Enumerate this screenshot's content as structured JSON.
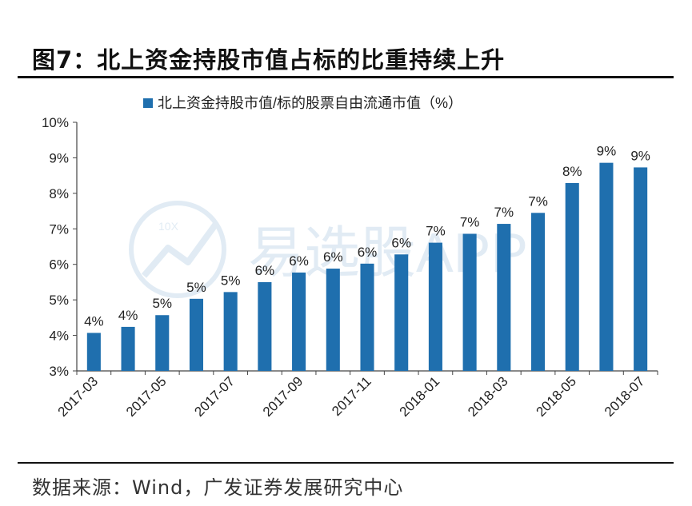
{
  "title": "图7：北上资金持股市值占标的比重持续上升",
  "source": "数据来源：Wind，广发证券发展研究中心",
  "watermark": {
    "badge": "10X",
    "text": "易选股APP"
  },
  "colors": {
    "bar": "#1F6FAE",
    "axis": "#444444",
    "text": "#222222"
  },
  "chart_data": {
    "type": "bar",
    "legend": "北上资金持股市值/标的股票自由流通市值（%）",
    "legend_position": "top",
    "ylim": [
      3,
      10
    ],
    "yticks": [
      "3%",
      "4%",
      "5%",
      "6%",
      "7%",
      "8%",
      "9%",
      "10%"
    ],
    "grid": false,
    "series": [
      {
        "name": "北上资金持股市值/标的股票自由流通市值（%）",
        "categories": [
          "2017-03",
          "2017-04",
          "2017-05",
          "2017-06",
          "2017-07",
          "2017-08",
          "2017-09",
          "2017-10",
          "2017-11",
          "2017-12",
          "2018-01",
          "2018-02",
          "2018-03",
          "2018-04",
          "2018-05",
          "2018-06",
          "2018-07"
        ],
        "values": [
          4.07,
          4.24,
          4.57,
          5.03,
          5.22,
          5.5,
          5.77,
          5.88,
          6.02,
          6.28,
          6.61,
          6.86,
          7.14,
          7.45,
          8.29,
          8.86,
          8.73
        ],
        "labels": [
          "4%",
          "4%",
          "5%",
          "5%",
          "5%",
          "6%",
          "6%",
          "6%",
          "6%",
          "6%",
          "7%",
          "7%",
          "7%",
          "7%",
          "8%",
          "9%",
          "9%"
        ]
      }
    ],
    "xtick_labels": [
      "2017-03",
      "2017-05",
      "2017-07",
      "2017-09",
      "2017-11",
      "2018-01",
      "2018-03",
      "2018-05",
      "2018-07"
    ]
  }
}
